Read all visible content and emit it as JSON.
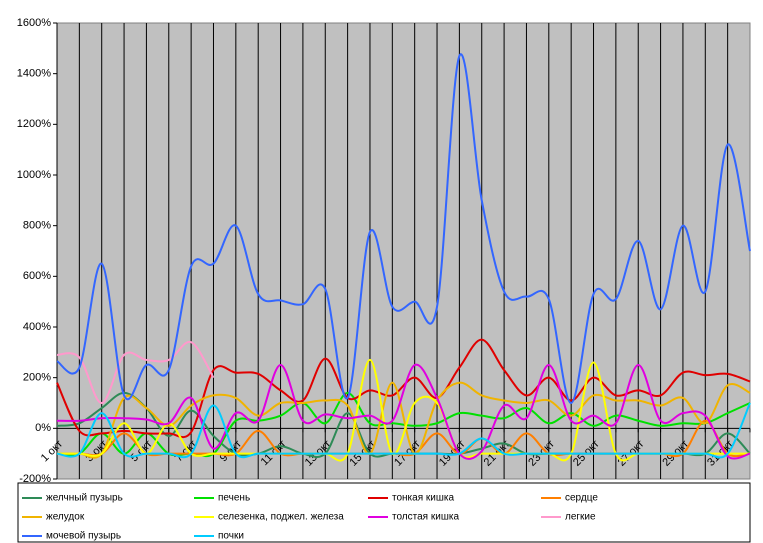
{
  "chart_data": {
    "type": "line",
    "categories": [
      "1 окт",
      null,
      "3 окт",
      null,
      "5 окт",
      null,
      "7 окт",
      null,
      "9 окт",
      null,
      "11 окт",
      null,
      "13 окт",
      null,
      "15 окт",
      null,
      "17 окт",
      null,
      "19 окт",
      null,
      "21 окт",
      null,
      "23 окт",
      null,
      "25 окт",
      null,
      "27 окт",
      null,
      "29 окт",
      null,
      "31 окт",
      null
    ],
    "ylim": [
      -200,
      1600
    ],
    "yticks": [
      {
        "value": -200,
        "label": "-200%"
      },
      {
        "value": 0,
        "label": "0%"
      },
      {
        "value": 200,
        "label": "200%"
      },
      {
        "value": 400,
        "label": "400%"
      },
      {
        "value": 600,
        "label": "600%"
      },
      {
        "value": 800,
        "label": "800%"
      },
      {
        "value": 1000,
        "label": "1000%"
      },
      {
        "value": 1200,
        "label": "1200%"
      },
      {
        "value": 1400,
        "label": "1400%"
      },
      {
        "value": 1600,
        "label": "1600%"
      }
    ],
    "smooth": true,
    "series": [
      {
        "name": "желчный пузырь",
        "color": "#2e8b57",
        "values": [
          10,
          20,
          80,
          140,
          80,
          -30,
          70,
          -30,
          -100,
          -100,
          -70,
          -100,
          -100,
          60,
          -100,
          -100,
          -100,
          -100,
          -100,
          -80,
          -60,
          -100,
          -100,
          -100,
          -100,
          -100,
          -100,
          -100,
          -100,
          -100,
          -20,
          -100
        ]
      },
      {
        "name": "печень",
        "color": "#00e000",
        "values": [
          -100,
          -100,
          -20,
          -100,
          -20,
          -100,
          -100,
          -100,
          30,
          30,
          50,
          100,
          20,
          140,
          20,
          20,
          10,
          20,
          60,
          50,
          40,
          80,
          20,
          60,
          10,
          50,
          30,
          10,
          20,
          20,
          60,
          100
        ]
      },
      {
        "name": "тонкая кишка",
        "color": "#e00000",
        "values": [
          180,
          -10,
          -20,
          -10,
          -20,
          -20,
          -15,
          230,
          220,
          215,
          150,
          110,
          275,
          120,
          150,
          130,
          200,
          120,
          240,
          350,
          230,
          130,
          200,
          110,
          200,
          130,
          150,
          130,
          220,
          210,
          215,
          185
        ]
      },
      {
        "name": "сердце",
        "color": "#ff7f00",
        "values": [
          -100,
          -100,
          -100,
          -20,
          -100,
          -100,
          -100,
          -100,
          -100,
          -10,
          -100,
          -100,
          -100,
          -100,
          -100,
          -100,
          -100,
          -20,
          -100,
          -40,
          -100,
          -20,
          -100,
          -100,
          -100,
          -100,
          -100,
          -100,
          -100,
          30,
          -100,
          -100
        ]
      },
      {
        "name": "желудок",
        "color": "#f0b400",
        "values": [
          -100,
          -100,
          -100,
          120,
          80,
          10,
          90,
          130,
          120,
          50,
          100,
          100,
          110,
          90,
          -100,
          180,
          -100,
          110,
          180,
          130,
          110,
          100,
          110,
          50,
          130,
          110,
          110,
          90,
          120,
          20,
          170,
          140
        ]
      },
      {
        "name": "селезенка, поджел. железа",
        "color": "#ffff00",
        "values": [
          -100,
          -100,
          -100,
          20,
          -100,
          20,
          -100,
          -100,
          -100,
          -100,
          -100,
          -100,
          -100,
          -100,
          270,
          -100,
          100,
          100,
          -100,
          -100,
          -100,
          -100,
          -100,
          -100,
          260,
          -100,
          -100,
          -100,
          -100,
          -100,
          -100,
          -100
        ]
      },
      {
        "name": "толстая кишка",
        "color": "#e000e0",
        "values": [
          30,
          30,
          40,
          40,
          35,
          20,
          120,
          -80,
          60,
          30,
          250,
          30,
          55,
          40,
          50,
          30,
          250,
          120,
          -100,
          -90,
          90,
          40,
          250,
          30,
          50,
          20,
          250,
          30,
          60,
          50,
          -110,
          -100
        ]
      },
      {
        "name": "легкие",
        "color": "#ff99cc",
        "values": [
          290,
          280,
          100,
          290,
          270,
          270,
          340,
          200,
          null,
          null,
          null,
          null,
          null,
          null,
          null,
          null,
          null,
          null,
          null,
          null,
          null,
          null,
          null,
          null,
          null,
          null,
          null,
          null,
          null,
          null,
          null,
          null
        ]
      },
      {
        "name": "мочевой пузырь",
        "color": "#3366ff",
        "values": [
          265,
          240,
          650,
          130,
          250,
          230,
          640,
          650,
          800,
          530,
          505,
          490,
          550,
          120,
          775,
          480,
          500,
          480,
          1470,
          900,
          540,
          520,
          510,
          100,
          530,
          510,
          740,
          470,
          800,
          540,
          1120,
          700
        ]
      },
      {
        "name": "почки",
        "color": "#00ccff",
        "values": [
          -100,
          -100,
          60,
          -100,
          -100,
          -100,
          -100,
          90,
          -100,
          -100,
          -100,
          -100,
          -100,
          -100,
          -100,
          -100,
          -100,
          -100,
          -100,
          -40,
          -100,
          -100,
          -100,
          -100,
          -100,
          -100,
          -100,
          -100,
          -100,
          -100,
          -100,
          100
        ]
      }
    ]
  }
}
